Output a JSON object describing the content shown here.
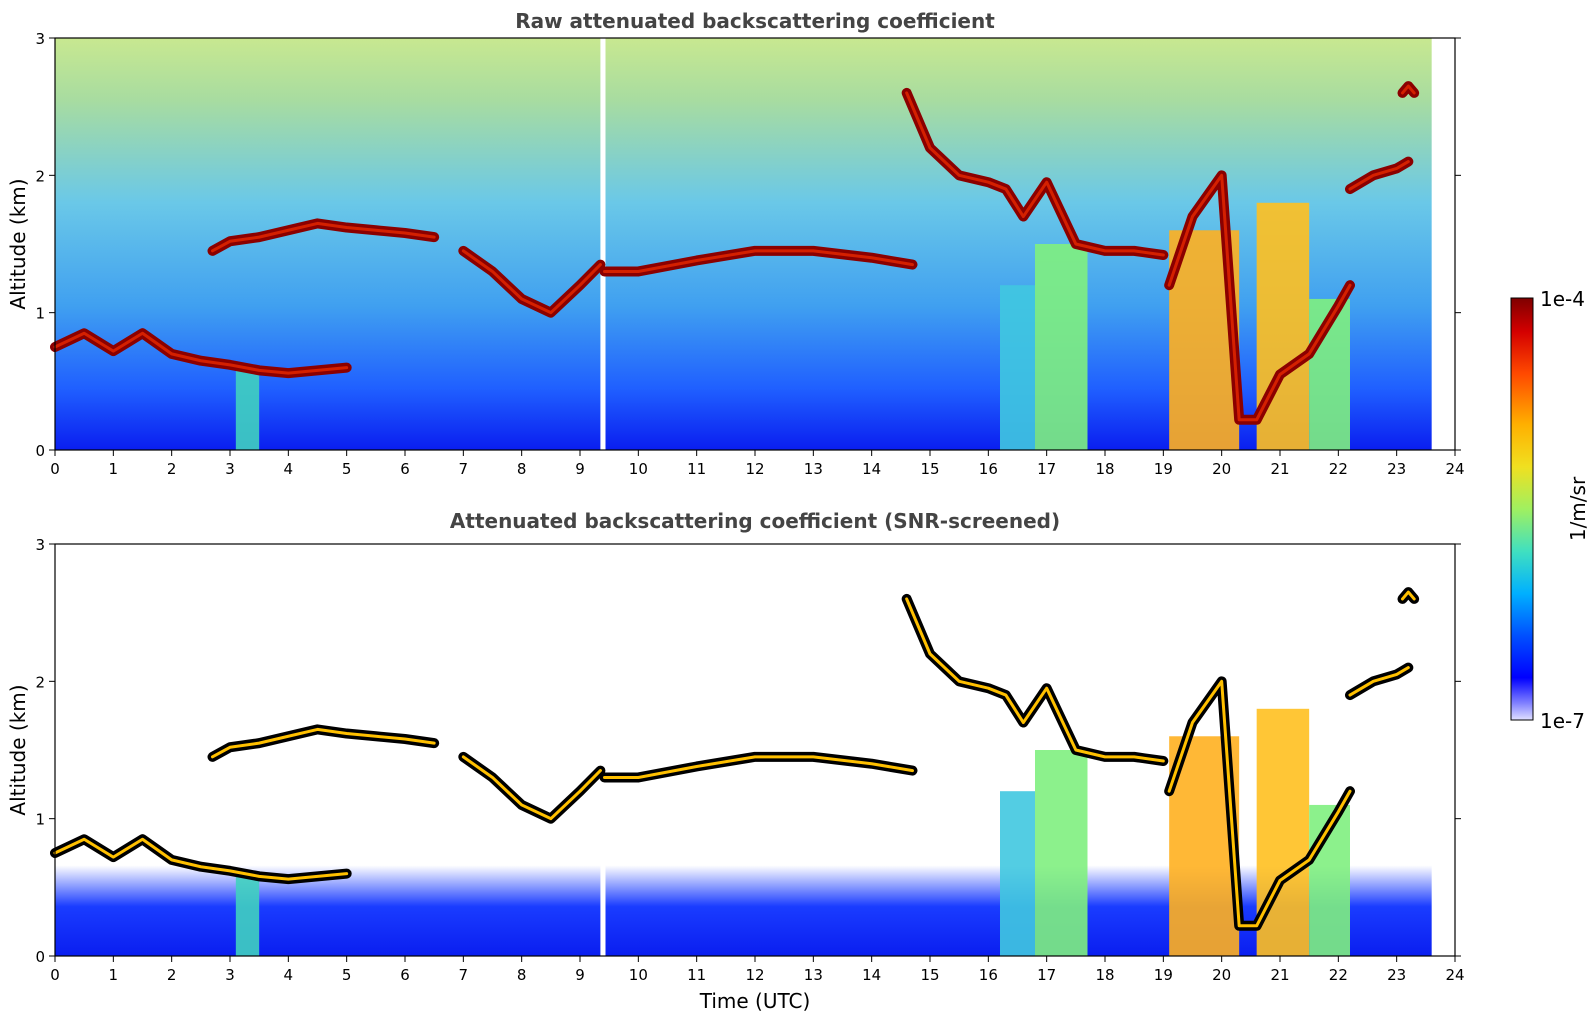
{
  "chart_data": [
    {
      "type": "heatmap",
      "title": "Raw attenuated backscattering coefficient",
      "xlabel": "",
      "ylabel": "Altitude (km)",
      "xlim": [
        0,
        24
      ],
      "ylim": [
        0,
        3
      ],
      "xticks": [
        "0",
        "1",
        "2",
        "3",
        "4",
        "5",
        "6",
        "7",
        "8",
        "9",
        "10",
        "11",
        "12",
        "13",
        "14",
        "15",
        "16",
        "17",
        "18",
        "19",
        "20",
        "21",
        "22",
        "23",
        "24"
      ],
      "yticks": [
        "0",
        "1",
        "2",
        "3"
      ],
      "data_end_time": 23.6,
      "data_gap": [
        9.35,
        9.42
      ],
      "cloud_layers": [
        {
          "x": [
            0.0,
            0.5,
            1.0,
            1.5,
            2.0,
            2.5,
            3.0,
            3.5,
            4.0,
            4.5,
            5.0
          ],
          "y": [
            0.75,
            0.85,
            0.72,
            0.85,
            0.7,
            0.65,
            0.62,
            0.58,
            0.56,
            0.58,
            0.6
          ]
        },
        {
          "x": [
            2.7,
            3.0,
            3.5,
            4.0,
            4.5,
            5.0,
            5.5,
            6.0,
            6.5
          ],
          "y": [
            1.45,
            1.52,
            1.55,
            1.6,
            1.65,
            1.62,
            1.6,
            1.58,
            1.55
          ]
        },
        {
          "x": [
            7.0,
            7.5,
            8.0,
            8.5,
            9.0,
            9.35
          ],
          "y": [
            1.45,
            1.3,
            1.1,
            1.0,
            1.2,
            1.35
          ]
        },
        {
          "x": [
            9.42,
            10.0,
            11.0,
            12.0,
            13.0,
            14.0,
            14.7
          ],
          "y": [
            1.3,
            1.3,
            1.38,
            1.45,
            1.45,
            1.4,
            1.35
          ]
        },
        {
          "x": [
            14.6,
            15.0,
            15.5,
            16.0,
            16.3,
            16.6,
            17.0,
            17.5,
            18.0,
            18.5,
            19.0
          ],
          "y": [
            2.6,
            2.2,
            2.0,
            1.95,
            1.9,
            1.7,
            1.95,
            1.5,
            1.45,
            1.45,
            1.42
          ]
        },
        {
          "x": [
            19.1,
            19.5,
            20.0,
            20.3,
            20.6,
            21.0,
            21.5,
            22.0,
            22.2
          ],
          "y": [
            1.2,
            1.7,
            2.0,
            0.22,
            0.22,
            0.55,
            0.7,
            1.05,
            1.2
          ]
        },
        {
          "x": [
            22.2,
            22.6,
            23.0,
            23.2
          ],
          "y": [
            1.9,
            2.0,
            2.05,
            2.1
          ]
        },
        {
          "x": [
            23.1,
            23.2,
            23.3
          ],
          "y": [
            2.6,
            2.65,
            2.6
          ]
        }
      ],
      "colorbar": {
        "min_label": "1e-7",
        "max_label": "1e-4",
        "label": "1/m/sr"
      }
    },
    {
      "type": "heatmap",
      "title": "Attenuated backscattering coefficient (SNR-screened)",
      "xlabel": "Time (UTC)",
      "ylabel": "Altitude (km)",
      "xlim": [
        0,
        24
      ],
      "ylim": [
        0,
        3
      ],
      "xticks": [
        "0",
        "1",
        "2",
        "3",
        "4",
        "5",
        "6",
        "7",
        "8",
        "9",
        "10",
        "11",
        "12",
        "13",
        "14",
        "15",
        "16",
        "17",
        "18",
        "19",
        "20",
        "21",
        "22",
        "23",
        "24"
      ],
      "yticks": [
        "0",
        "1",
        "2",
        "3"
      ],
      "screened": true
    }
  ],
  "colorbar": {
    "min_label": "1e-7",
    "max_label": "1e-4",
    "label": "1/m/sr",
    "colors": [
      "#7f0000",
      "#d40000",
      "#ff4a00",
      "#ffb000",
      "#f0e020",
      "#a0f060",
      "#40e0c0",
      "#00b0ff",
      "#0050ff",
      "#0000ff",
      "#8080ff",
      "#e0e0ff"
    ]
  }
}
